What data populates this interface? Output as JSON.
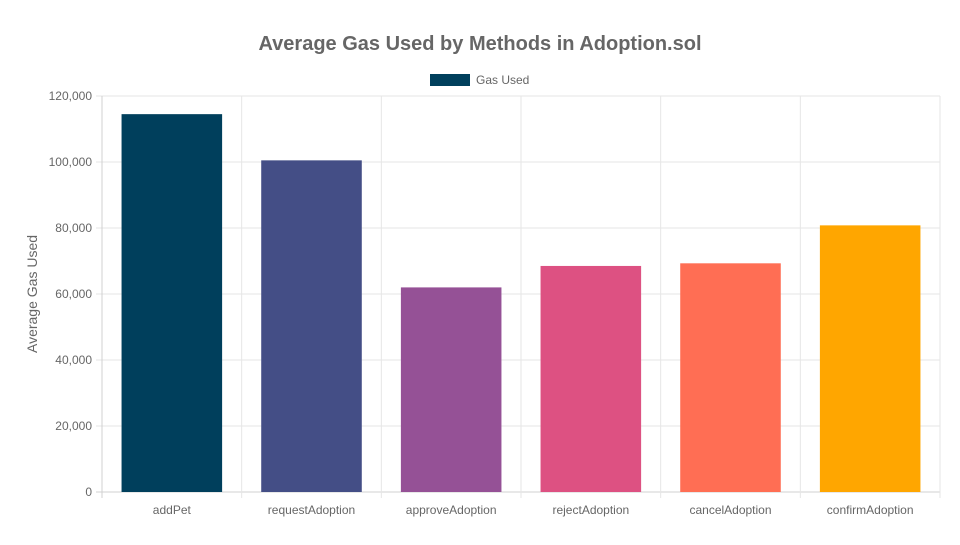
{
  "chart_data": {
    "type": "bar",
    "title": "Average Gas Used by Methods in Adoption.sol",
    "xlabel": "",
    "ylabel": "Average Gas Used",
    "categories": [
      "addPet",
      "requestAdoption",
      "approveAdoption",
      "rejectAdoption",
      "cancelAdoption",
      "confirmAdoption"
    ],
    "series": [
      {
        "name": "Gas Used",
        "values": [
          114500,
          100500,
          62000,
          68500,
          69300,
          80800
        ]
      }
    ],
    "bar_colors": [
      "#003f5c",
      "#444e86",
      "#955196",
      "#dd5182",
      "#ff6e54",
      "#ffa600"
    ],
    "legend_color": "#003f5c",
    "ylim": [
      0,
      120000
    ],
    "y_ticks": [
      "0",
      "20,000",
      "40,000",
      "60,000",
      "80,000",
      "100,000",
      "120,000"
    ],
    "grid": true,
    "legend_position": "top"
  }
}
